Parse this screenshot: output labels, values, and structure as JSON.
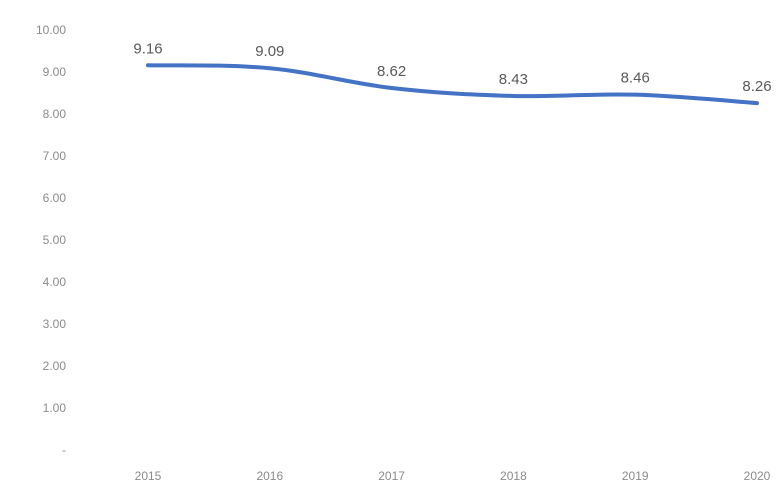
{
  "chart_data": {
    "type": "line",
    "title": "",
    "xlabel": "",
    "ylabel": "",
    "categories": [
      "2015",
      "2016",
      "2017",
      "2018",
      "2019",
      "2020"
    ],
    "series": [
      {
        "values": [
          9.16,
          9.09,
          8.62,
          8.43,
          8.46,
          8.26
        ],
        "value_labels": [
          "9.16",
          "9.09",
          "8.62",
          "8.43",
          "8.46",
          "8.26"
        ],
        "color": "#4472c4"
      }
    ],
    "ylim": [
      0,
      10
    ],
    "y_ticks": [
      {
        "value": 10,
        "label": "10.00"
      },
      {
        "value": 9,
        "label": "9.00"
      },
      {
        "value": 8,
        "label": "8.00"
      },
      {
        "value": 7,
        "label": "7.00"
      },
      {
        "value": 6,
        "label": "6.00"
      },
      {
        "value": 5,
        "label": "5.00"
      },
      {
        "value": 4,
        "label": "4.00"
      },
      {
        "value": 3,
        "label": "3.00"
      },
      {
        "value": 2,
        "label": "2.00"
      },
      {
        "value": 1,
        "label": "1.00"
      },
      {
        "value": 0,
        "label": "-"
      }
    ],
    "grid": false,
    "legend": "none"
  }
}
